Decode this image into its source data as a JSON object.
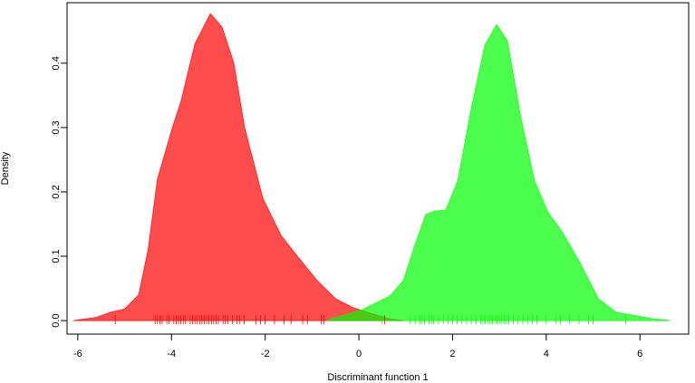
{
  "chart_data": {
    "type": "density",
    "x_label": "Discriminant function 1",
    "y_label": "Density",
    "xlim": [
      -6.23,
      7.04
    ],
    "ylim": [
      -0.021,
      0.494
    ],
    "xticks": [
      -6,
      -4,
      -2,
      0,
      2,
      4,
      6
    ],
    "yticks": [
      {
        "value": 0,
        "label": "0.0"
      },
      0.1,
      0.2,
      0.3,
      0.4
    ],
    "series": [
      {
        "color": "#ff0000",
        "x": [
          -6.1,
          -5.6,
          -5.3,
          -5.0,
          -4.7,
          -4.5,
          -4.3,
          -3.98,
          -3.8,
          -3.5,
          -3.17,
          -2.92,
          -2.67,
          -2.44,
          -2.05,
          -1.66,
          -1.28,
          -0.89,
          -0.5,
          -0.12,
          0.27,
          0.66,
          0.95
        ],
        "values": [
          0,
          0.005,
          0.013,
          0.018,
          0.04,
          0.11,
          0.22,
          0.3,
          0.34,
          0.43,
          0.477,
          0.456,
          0.4,
          0.3,
          0.19,
          0.132,
          0.097,
          0.062,
          0.034,
          0.02,
          0.011,
          0.003,
          0
        ],
        "rug": [
          -5.2,
          -4.35,
          -4.3,
          -4.25,
          -4.2,
          -4.1,
          -4.05,
          -3.95,
          -3.9,
          -3.85,
          -3.8,
          -3.75,
          -3.7,
          -3.6,
          -3.55,
          -3.5,
          -3.45,
          -3.4,
          -3.35,
          -3.3,
          -3.25,
          -3.2,
          -3.15,
          -3.1,
          -3.05,
          -3.0,
          -2.9,
          -2.85,
          -2.8,
          -2.7,
          -2.6,
          -2.55,
          -2.45,
          -2.2,
          -2.1,
          -2.0,
          -1.8,
          -1.6,
          -1.45,
          -1.2,
          -1.1,
          -0.8,
          -0.75,
          0.55
        ]
      },
      {
        "color": "#00ff00",
        "x": [
          -0.7,
          0.08,
          0.66,
          0.95,
          1.2,
          1.43,
          1.62,
          1.86,
          2.11,
          2.4,
          2.69,
          2.94,
          3.17,
          3.46,
          3.75,
          4.04,
          4.33,
          4.72,
          5.11,
          5.49,
          5.88,
          6.27,
          6.65
        ],
        "values": [
          0,
          0.017,
          0.038,
          0.062,
          0.118,
          0.165,
          0.17,
          0.172,
          0.217,
          0.33,
          0.428,
          0.46,
          0.435,
          0.315,
          0.217,
          0.168,
          0.139,
          0.09,
          0.034,
          0.013,
          0.008,
          0.003,
          0
        ],
        "rug": [
          0.5,
          1.1,
          1.2,
          1.3,
          1.35,
          1.4,
          1.5,
          1.55,
          1.6,
          1.7,
          1.8,
          1.9,
          2.0,
          2.1,
          2.2,
          2.3,
          2.4,
          2.5,
          2.6,
          2.65,
          2.7,
          2.75,
          2.8,
          2.85,
          2.9,
          2.95,
          3.0,
          3.05,
          3.1,
          3.15,
          3.2,
          3.3,
          3.4,
          3.5,
          3.6,
          3.7,
          3.8,
          4.0,
          4.2,
          4.3,
          4.5,
          4.7,
          4.9,
          5.0,
          5.7
        ]
      }
    ]
  }
}
